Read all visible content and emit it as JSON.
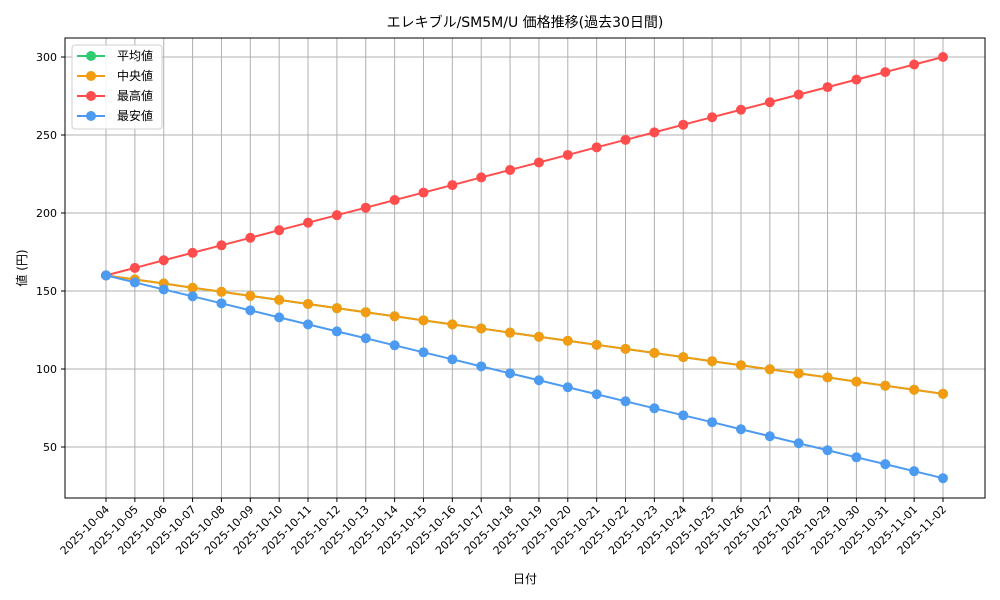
{
  "chart_data": {
    "type": "line",
    "title": "エレキブル/SM5M/U 価格推移(過去30日間)",
    "xlabel": "日付",
    "ylabel": "値 (円)",
    "ylim": [
      16,
      313
    ],
    "yticks": [
      50,
      100,
      150,
      200,
      250,
      300
    ],
    "grid": true,
    "legend_position": "upper left",
    "x": [
      "2025-10-04",
      "2025-10-05",
      "2025-10-06",
      "2025-10-07",
      "2025-10-08",
      "2025-10-09",
      "2025-10-10",
      "2025-10-11",
      "2025-10-12",
      "2025-10-13",
      "2025-10-14",
      "2025-10-15",
      "2025-10-16",
      "2025-10-17",
      "2025-10-18",
      "2025-10-19",
      "2025-10-20",
      "2025-10-21",
      "2025-10-22",
      "2025-10-23",
      "2025-10-24",
      "2025-10-25",
      "2025-10-26",
      "2025-10-27",
      "2025-10-28",
      "2025-10-29",
      "2025-10-30",
      "2025-10-31",
      "2025-11-01",
      "2025-11-02"
    ],
    "series": [
      {
        "name": "平均値",
        "color": "#2ecc71",
        "values": [
          160,
          157.4,
          154.8,
          152.1,
          149.5,
          146.9,
          144.3,
          141.7,
          139.0,
          136.4,
          133.8,
          131.2,
          128.6,
          126.0,
          123.3,
          120.7,
          118.1,
          115.5,
          112.9,
          110.3,
          107.6,
          105.0,
          102.4,
          99.8,
          97.2,
          94.6,
          91.9,
          89.3,
          86.7,
          84.1
        ]
      },
      {
        "name": "中央値",
        "color": "#f39c12",
        "values": [
          160,
          157.4,
          154.8,
          152.1,
          149.5,
          146.9,
          144.3,
          141.7,
          139.0,
          136.4,
          133.8,
          131.2,
          128.6,
          126.0,
          123.3,
          120.7,
          118.1,
          115.5,
          112.9,
          110.3,
          107.6,
          105.0,
          102.4,
          99.8,
          97.2,
          94.6,
          91.9,
          89.3,
          86.7,
          84.1
        ]
      },
      {
        "name": "最高値",
        "color": "#ff4d4d",
        "values": [
          160,
          164.8,
          169.7,
          174.5,
          179.3,
          184.1,
          189.0,
          193.8,
          198.6,
          203.4,
          208.3,
          213.1,
          217.9,
          222.8,
          227.6,
          232.4,
          237.2,
          242.1,
          246.9,
          251.7,
          256.6,
          261.4,
          266.2,
          271.0,
          275.9,
          280.7,
          285.5,
          290.3,
          295.2,
          300
        ]
      },
      {
        "name": "最安値",
        "color": "#4d9bf0",
        "values": [
          160,
          155.5,
          151.0,
          146.6,
          142.1,
          137.6,
          133.1,
          128.6,
          124.1,
          119.7,
          115.2,
          110.7,
          106.2,
          101.7,
          97.2,
          92.8,
          88.3,
          83.8,
          79.3,
          74.8,
          70.3,
          65.9,
          61.4,
          56.9,
          52.4,
          47.9,
          43.4,
          39.0,
          34.5,
          30
        ]
      }
    ]
  }
}
